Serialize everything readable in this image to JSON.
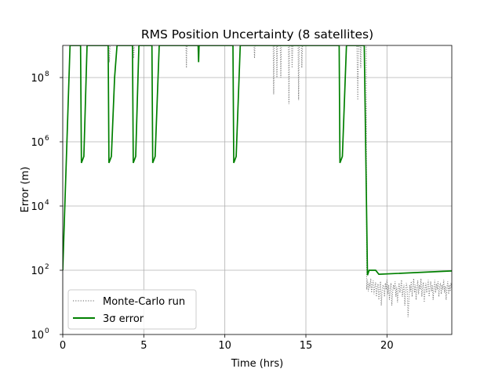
{
  "chart_data": {
    "type": "line",
    "title": "RMS Position Uncertainty (8 satellites)",
    "xlabel": "Time (hrs)",
    "ylabel": "Error (m)",
    "xlim": [
      0,
      24
    ],
    "ylim": [
      1,
      1000000000
    ],
    "yscale": "log",
    "grid": true,
    "legend_placement": "lower-left",
    "x_ticks": [
      {
        "value": 0,
        "label": "0"
      },
      {
        "value": 5,
        "label": "5"
      },
      {
        "value": 10,
        "label": "10"
      },
      {
        "value": 15,
        "label": "15"
      },
      {
        "value": 20,
        "label": "20"
      }
    ],
    "y_ticks": [
      {
        "exp": 0,
        "base": "10",
        "sup": "0"
      },
      {
        "exp": 2,
        "base": "10",
        "sup": "2"
      },
      {
        "exp": 4,
        "base": "10",
        "sup": "4"
      },
      {
        "exp": 6,
        "base": "10",
        "sup": "6"
      },
      {
        "exp": 8,
        "base": "10",
        "sup": "8"
      }
    ],
    "series": [
      {
        "name": "Monte-Carlo run",
        "color": "#808080",
        "style": "dotted",
        "points": [
          [
            2.85,
            1000000000.0
          ],
          [
            2.88,
            300000000.0
          ],
          [
            2.92,
            1000000000.0
          ],
          [
            4.35,
            1000000000.0
          ],
          [
            4.38,
            400000000.0
          ],
          [
            4.42,
            1000000000.0
          ],
          [
            7.6,
            1000000000.0
          ],
          [
            7.63,
            200000000.0
          ],
          [
            7.66,
            1000000000.0
          ],
          [
            11.8,
            1000000000.0
          ],
          [
            11.83,
            400000000.0
          ],
          [
            11.86,
            1000000000.0
          ],
          [
            12.98,
            1000000000.0
          ],
          [
            13.01,
            30000000.0
          ],
          [
            13.05,
            1000000000.0
          ],
          [
            13.18,
            1000000000.0
          ],
          [
            13.21,
            100000000.0
          ],
          [
            13.25,
            1000000000.0
          ],
          [
            13.42,
            1000000000.0
          ],
          [
            13.45,
            100000000.0
          ],
          [
            13.49,
            1000000000.0
          ],
          [
            13.92,
            1000000000.0
          ],
          [
            13.95,
            15000000.0
          ],
          [
            13.99,
            1000000000.0
          ],
          [
            14.12,
            1000000000.0
          ],
          [
            14.15,
            200000000.0
          ],
          [
            14.19,
            1000000000.0
          ],
          [
            14.52,
            1000000000.0
          ],
          [
            14.55,
            20000000.0
          ],
          [
            14.59,
            1000000000.0
          ],
          [
            14.72,
            1000000000.0
          ],
          [
            14.75,
            200000000.0
          ],
          [
            14.79,
            1000000000.0
          ],
          [
            18.15,
            1000000000.0
          ],
          [
            18.2,
            20000000.0
          ],
          [
            18.25,
            1000000000.0
          ],
          [
            18.35,
            1000000000.0
          ],
          [
            18.38,
            200000000.0
          ],
          [
            18.41,
            1000000000.0
          ],
          [
            18.72,
            1000000000.0
          ],
          [
            18.75,
            25
          ],
          [
            18.8,
            50
          ],
          [
            18.85,
            22
          ],
          [
            18.9,
            40
          ],
          [
            18.95,
            28
          ],
          [
            19.0,
            55
          ],
          [
            19.05,
            20
          ],
          [
            19.1,
            35
          ],
          [
            19.15,
            48
          ],
          [
            19.2,
            18
          ],
          [
            19.25,
            30
          ],
          [
            19.3,
            42
          ],
          [
            19.35,
            15
          ],
          [
            19.4,
            28
          ],
          [
            19.45,
            38
          ],
          [
            19.5,
            12
          ],
          [
            19.55,
            25
          ],
          [
            19.6,
            45
          ],
          [
            19.65,
            8
          ],
          [
            19.7,
            22
          ],
          [
            19.75,
            35
          ],
          [
            19.8,
            30
          ],
          [
            19.85,
            15
          ],
          [
            19.9,
            40
          ],
          [
            19.95,
            25
          ],
          [
            20.0,
            50
          ],
          [
            20.05,
            18
          ],
          [
            20.1,
            35
          ],
          [
            20.15,
            12
          ],
          [
            20.2,
            28
          ],
          [
            20.25,
            40
          ],
          [
            20.3,
            8
          ],
          [
            20.35,
            20
          ],
          [
            20.4,
            35
          ],
          [
            20.45,
            25
          ],
          [
            20.5,
            45
          ],
          [
            20.55,
            15
          ],
          [
            20.6,
            30
          ],
          [
            20.65,
            10
          ],
          [
            20.7,
            25
          ],
          [
            20.75,
            40
          ],
          [
            20.8,
            20
          ],
          [
            20.85,
            30
          ],
          [
            20.9,
            50
          ],
          [
            20.95,
            15
          ],
          [
            21.0,
            25
          ],
          [
            21.05,
            35
          ],
          [
            21.1,
            8
          ],
          [
            21.15,
            20
          ],
          [
            21.2,
            40
          ],
          [
            21.25,
            28
          ],
          [
            21.3,
            3.5
          ],
          [
            21.35,
            10
          ],
          [
            21.4,
            35
          ],
          [
            21.45,
            22
          ],
          [
            21.5,
            45
          ],
          [
            21.55,
            15
          ],
          [
            21.6,
            30
          ],
          [
            21.65,
            55
          ],
          [
            21.7,
            20
          ],
          [
            21.75,
            35
          ],
          [
            21.8,
            12
          ],
          [
            21.85,
            28
          ],
          [
            21.9,
            48
          ],
          [
            21.95,
            18
          ],
          [
            22.0,
            35
          ],
          [
            22.05,
            25
          ],
          [
            22.1,
            55
          ],
          [
            22.15,
            15
          ],
          [
            22.2,
            30
          ],
          [
            22.25,
            42
          ],
          [
            22.3,
            10
          ],
          [
            22.35,
            25
          ],
          [
            22.4,
            40
          ],
          [
            22.45,
            20
          ],
          [
            22.5,
            32
          ],
          [
            22.55,
            50
          ],
          [
            22.6,
            15
          ],
          [
            22.65,
            28
          ],
          [
            22.7,
            45
          ],
          [
            22.75,
            22
          ],
          [
            22.8,
            35
          ],
          [
            22.85,
            12
          ],
          [
            22.9,
            30
          ],
          [
            22.95,
            50
          ],
          [
            23.0,
            20
          ],
          [
            23.05,
            38
          ],
          [
            23.1,
            25
          ],
          [
            23.15,
            45
          ],
          [
            23.2,
            15
          ],
          [
            23.25,
            30
          ],
          [
            23.3,
            40
          ],
          [
            23.35,
            18
          ],
          [
            23.4,
            35
          ],
          [
            23.45,
            25
          ],
          [
            23.5,
            50
          ],
          [
            23.55,
            20
          ],
          [
            23.6,
            32
          ],
          [
            23.65,
            12
          ],
          [
            23.7,
            28
          ],
          [
            23.75,
            45
          ],
          [
            23.8,
            18
          ],
          [
            23.85,
            35
          ],
          [
            23.9,
            22
          ],
          [
            23.95,
            40
          ],
          [
            24.0,
            25
          ]
        ]
      },
      {
        "name": "3σ error",
        "color": "#008000",
        "style": "solid",
        "points": [
          [
            0,
            100
          ],
          [
            0.45,
            1000000000.0
          ],
          [
            1.1,
            1000000000.0
          ],
          [
            1.15,
            220000.0
          ],
          [
            1.3,
            350000.0
          ],
          [
            1.5,
            1000000000.0
          ],
          [
            2.8,
            1000000000.0
          ],
          [
            2.85,
            220000.0
          ],
          [
            3.0,
            350000.0
          ],
          [
            3.2,
            100000000.0
          ],
          [
            3.35,
            1000000000.0
          ],
          [
            4.3,
            1000000000.0
          ],
          [
            4.35,
            220000.0
          ],
          [
            4.5,
            350000.0
          ],
          [
            4.7,
            1000000000.0
          ],
          [
            5.5,
            1000000000.0
          ],
          [
            5.55,
            220000.0
          ],
          [
            5.7,
            350000.0
          ],
          [
            5.95,
            1000000000.0
          ],
          [
            8.35,
            1000000000.0
          ],
          [
            8.38,
            300000000.0
          ],
          [
            8.41,
            1000000000.0
          ],
          [
            10.5,
            1000000000.0
          ],
          [
            10.55,
            220000.0
          ],
          [
            10.7,
            350000.0
          ],
          [
            10.95,
            1000000000.0
          ],
          [
            17.05,
            1000000000.0
          ],
          [
            17.1,
            220000.0
          ],
          [
            17.25,
            350000.0
          ],
          [
            17.5,
            1000000000.0
          ],
          [
            18.6,
            1000000000.0
          ],
          [
            18.8,
            70
          ],
          [
            18.9,
            100
          ],
          [
            19.3,
            100
          ],
          [
            19.5,
            75
          ],
          [
            24.0,
            95
          ]
        ]
      }
    ]
  }
}
